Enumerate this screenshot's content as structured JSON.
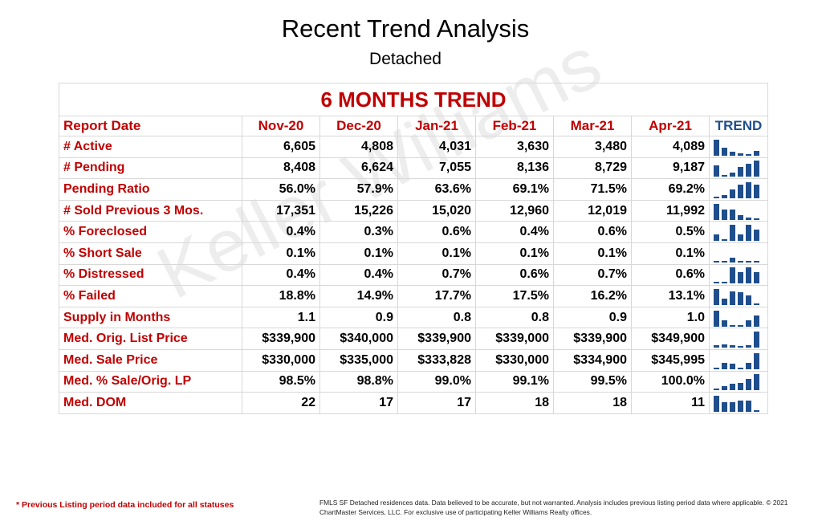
{
  "header": {
    "title": "Recent Trend Analysis",
    "subtitle": "Detached"
  },
  "watermark": "Keller Williams",
  "table": {
    "banner": "6 MONTHS TREND",
    "columns": [
      "Report Date",
      "Nov-20",
      "Dec-20",
      "Jan-21",
      "Feb-21",
      "Mar-21",
      "Apr-21",
      "TREND"
    ],
    "rows": [
      {
        "label": "# Active",
        "values": [
          "6,605",
          "4,808",
          "4,031",
          "3,630",
          "3,480",
          "4,089"
        ],
        "nums": [
          6605,
          4808,
          4031,
          3630,
          3480,
          4089
        ]
      },
      {
        "label": "# Pending",
        "values": [
          "8,408",
          "6,624",
          "7,055",
          "8,136",
          "8,729",
          "9,187"
        ],
        "nums": [
          8408,
          6624,
          7055,
          8136,
          8729,
          9187
        ]
      },
      {
        "label": "Pending Ratio",
        "values": [
          "56.0%",
          "57.9%",
          "63.6%",
          "69.1%",
          "71.5%",
          "69.2%"
        ],
        "nums": [
          56.0,
          57.9,
          63.6,
          69.1,
          71.5,
          69.2
        ]
      },
      {
        "label": "# Sold Previous 3 Mos.",
        "values": [
          "17,351",
          "15,226",
          "15,020",
          "12,960",
          "12,019",
          "11,992"
        ],
        "nums": [
          17351,
          15226,
          15020,
          12960,
          12019,
          11992
        ]
      },
      {
        "label": "% Foreclosed",
        "values": [
          "0.4%",
          "0.3%",
          "0.6%",
          "0.4%",
          "0.6%",
          "0.5%"
        ],
        "nums": [
          0.4,
          0.3,
          0.6,
          0.4,
          0.6,
          0.5
        ]
      },
      {
        "label": "% Short Sale",
        "values": [
          "0.1%",
          "0.1%",
          "0.1%",
          "0.1%",
          "0.1%",
          "0.1%"
        ],
        "nums": [
          0.1,
          0.1,
          0.1,
          0.1,
          0.1,
          0.1
        ]
      },
      {
        "label": "% Distressed",
        "values": [
          "0.4%",
          "0.4%",
          "0.7%",
          "0.6%",
          "0.7%",
          "0.6%"
        ],
        "nums": [
          0.4,
          0.4,
          0.7,
          0.6,
          0.7,
          0.6
        ]
      },
      {
        "label": "% Failed",
        "values": [
          "18.8%",
          "14.9%",
          "17.7%",
          "17.5%",
          "16.2%",
          "13.1%"
        ],
        "nums": [
          18.8,
          14.9,
          17.7,
          17.5,
          16.2,
          13.1
        ]
      },
      {
        "label": "Supply in Months",
        "values": [
          "1.1",
          "0.9",
          "0.8",
          "0.8",
          "0.9",
          "1.0"
        ],
        "nums": [
          1.1,
          0.9,
          0.8,
          0.8,
          0.9,
          1.0
        ]
      },
      {
        "label": "Med. Orig. List Price",
        "values": [
          "$339,900",
          "$340,000",
          "$339,900",
          "$339,000",
          "$339,900",
          "$349,900"
        ],
        "nums": [
          339900,
          340000,
          339900,
          339000,
          339900,
          349900
        ]
      },
      {
        "label": "Med. Sale Price",
        "values": [
          "$330,000",
          "$335,000",
          "$333,828",
          "$330,000",
          "$334,900",
          "$345,995"
        ],
        "nums": [
          330000,
          335000,
          333828,
          330000,
          334900,
          345995
        ]
      },
      {
        "label": "Med. % Sale/Orig. LP",
        "values": [
          "98.5%",
          "98.8%",
          "99.0%",
          "99.1%",
          "99.5%",
          "100.0%"
        ],
        "nums": [
          98.5,
          98.8,
          99.0,
          99.1,
          99.5,
          100.0
        ]
      },
      {
        "label": "Med. DOM",
        "values": [
          "22",
          "17",
          "17",
          "18",
          "18",
          "11"
        ],
        "nums": [
          22,
          17,
          17,
          18,
          18,
          11
        ]
      }
    ]
  },
  "footer": {
    "note": "* Previous Listing period data included for all statuses",
    "disclaimer": "FMLS SF Detached residences data.  Data believed to be accurate, but not warranted.   Analysis includes previous listing period data where applicable.  © 2021 ChartMaster Services, LLC.  For exclusive use of participating Keller Williams Realty offices."
  },
  "colors": {
    "accent_red": "#c00000",
    "trend_blue": "#1f4e8c"
  }
}
